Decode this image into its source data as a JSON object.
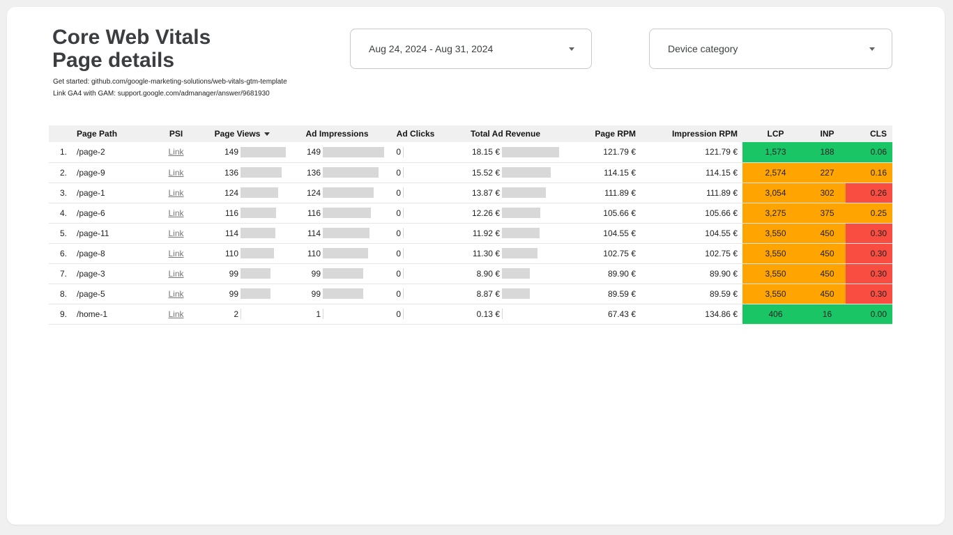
{
  "page": {
    "title": "Core Web Vitals Page details",
    "subtitle1": "Get started: github.com/google-marketing-solutions/web-vitals-gtm-template",
    "subtitle2": "Link GA4 with GAM: support.google.com/admanager/answer/9681930"
  },
  "controls": {
    "date_range": {
      "value": "Aug 24, 2024 - Aug 31, 2024"
    },
    "device_category": {
      "label": "Device category"
    }
  },
  "colors": {
    "good": "#1ac565",
    "needs_improvement": "#ffa400",
    "poor": "#fa4d42",
    "bar": "#d8d8d8"
  },
  "table": {
    "columns": [
      "Page Path",
      "PSI",
      "Page Views",
      "Ad Impressions",
      "Ad Clicks",
      "Total Ad Revenue",
      "Page RPM",
      "Impression RPM",
      "LCP",
      "INP",
      "CLS"
    ],
    "sort_column": "Page Views",
    "rows": [
      {
        "num": "1.",
        "path": "/page-2",
        "psi": "Link",
        "page_views": 149,
        "ad_impressions": 149,
        "ad_clicks": 0,
        "total_ad_revenue": {
          "label": "18.15 €",
          "value": 18.15
        },
        "page_rpm": "121.79 €",
        "impression_rpm": "121.79 €",
        "lcp": {
          "value": "1,573",
          "status": "good"
        },
        "inp": {
          "value": "188",
          "status": "good"
        },
        "cls": {
          "value": "0.06",
          "status": "good"
        }
      },
      {
        "num": "2.",
        "path": "/page-9",
        "psi": "Link",
        "page_views": 136,
        "ad_impressions": 136,
        "ad_clicks": 0,
        "total_ad_revenue": {
          "label": "15.52 €",
          "value": 15.52
        },
        "page_rpm": "114.15 €",
        "impression_rpm": "114.15 €",
        "lcp": {
          "value": "2,574",
          "status": "needs_improvement"
        },
        "inp": {
          "value": "227",
          "status": "needs_improvement"
        },
        "cls": {
          "value": "0.16",
          "status": "needs_improvement"
        }
      },
      {
        "num": "3.",
        "path": "/page-1",
        "psi": "Link",
        "page_views": 124,
        "ad_impressions": 124,
        "ad_clicks": 0,
        "total_ad_revenue": {
          "label": "13.87 €",
          "value": 13.87
        },
        "page_rpm": "111.89 €",
        "impression_rpm": "111.89 €",
        "lcp": {
          "value": "3,054",
          "status": "needs_improvement"
        },
        "inp": {
          "value": "302",
          "status": "needs_improvement"
        },
        "cls": {
          "value": "0.26",
          "status": "poor"
        }
      },
      {
        "num": "4.",
        "path": "/page-6",
        "psi": "Link",
        "page_views": 116,
        "ad_impressions": 116,
        "ad_clicks": 0,
        "total_ad_revenue": {
          "label": "12.26 €",
          "value": 12.26
        },
        "page_rpm": "105.66 €",
        "impression_rpm": "105.66 €",
        "lcp": {
          "value": "3,275",
          "status": "needs_improvement"
        },
        "inp": {
          "value": "375",
          "status": "needs_improvement"
        },
        "cls": {
          "value": "0.25",
          "status": "needs_improvement"
        }
      },
      {
        "num": "5.",
        "path": "/page-11",
        "psi": "Link",
        "page_views": 114,
        "ad_impressions": 114,
        "ad_clicks": 0,
        "total_ad_revenue": {
          "label": "11.92 €",
          "value": 11.92
        },
        "page_rpm": "104.55 €",
        "impression_rpm": "104.55 €",
        "lcp": {
          "value": "3,550",
          "status": "needs_improvement"
        },
        "inp": {
          "value": "450",
          "status": "needs_improvement"
        },
        "cls": {
          "value": "0.30",
          "status": "poor"
        }
      },
      {
        "num": "6.",
        "path": "/page-8",
        "psi": "Link",
        "page_views": 110,
        "ad_impressions": 110,
        "ad_clicks": 0,
        "total_ad_revenue": {
          "label": "11.30 €",
          "value": 11.3
        },
        "page_rpm": "102.75 €",
        "impression_rpm": "102.75 €",
        "lcp": {
          "value": "3,550",
          "status": "needs_improvement"
        },
        "inp": {
          "value": "450",
          "status": "needs_improvement"
        },
        "cls": {
          "value": "0.30",
          "status": "poor"
        }
      },
      {
        "num": "7.",
        "path": "/page-3",
        "psi": "Link",
        "page_views": 99,
        "ad_impressions": 99,
        "ad_clicks": 0,
        "total_ad_revenue": {
          "label": "8.90 €",
          "value": 8.9
        },
        "page_rpm": "89.90 €",
        "impression_rpm": "89.90 €",
        "lcp": {
          "value": "3,550",
          "status": "needs_improvement"
        },
        "inp": {
          "value": "450",
          "status": "needs_improvement"
        },
        "cls": {
          "value": "0.30",
          "status": "poor"
        }
      },
      {
        "num": "8.",
        "path": "/page-5",
        "psi": "Link",
        "page_views": 99,
        "ad_impressions": 99,
        "ad_clicks": 0,
        "total_ad_revenue": {
          "label": "8.87 €",
          "value": 8.87
        },
        "page_rpm": "89.59 €",
        "impression_rpm": "89.59 €",
        "lcp": {
          "value": "3,550",
          "status": "needs_improvement"
        },
        "inp": {
          "value": "450",
          "status": "needs_improvement"
        },
        "cls": {
          "value": "0.30",
          "status": "poor"
        }
      },
      {
        "num": "9.",
        "path": "/home-1",
        "psi": "Link",
        "page_views": 2,
        "ad_impressions": 1,
        "ad_clicks": 0,
        "total_ad_revenue": {
          "label": "0.13 €",
          "value": 0.13
        },
        "page_rpm": "67.43 €",
        "impression_rpm": "134.86 €",
        "lcp": {
          "value": "406",
          "status": "good"
        },
        "inp": {
          "value": "16",
          "status": "good"
        },
        "cls": {
          "value": "0.00",
          "status": "good"
        }
      }
    ]
  }
}
